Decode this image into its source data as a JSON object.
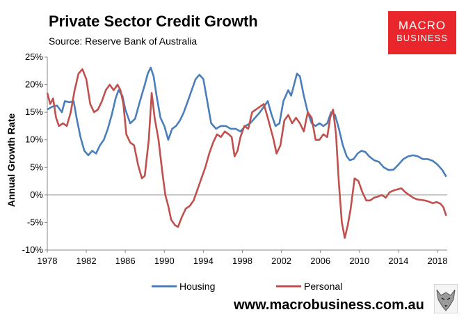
{
  "header": {
    "title": "Private Sector Credit Growth",
    "subtitle": "Source: Reserve Bank of Australia"
  },
  "logo": {
    "line1": "MACRO",
    "line2": "BUSINESS",
    "color": "#e8262b"
  },
  "footer": {
    "url": "www.macrobusiness.com.au",
    "mascot_icon": "wolf-icon"
  },
  "chart_data": {
    "type": "line",
    "title": "Private Sector Credit Growth",
    "xlabel": "",
    "ylabel": "Annual Growth Rate",
    "xlim": [
      1978,
      2019
    ],
    "ylim": [
      -10,
      25
    ],
    "x_ticks": [
      1978,
      1982,
      1986,
      1990,
      1994,
      1998,
      2002,
      2006,
      2010,
      2014,
      2018
    ],
    "y_ticks": [
      -10,
      -5,
      0,
      5,
      10,
      15,
      20,
      25
    ],
    "y_tick_labels": [
      "-10%",
      "-5%",
      "0%",
      "5%",
      "10%",
      "15%",
      "20%",
      "25%"
    ],
    "grid": false,
    "legend_position": "bottom",
    "series": [
      {
        "name": "Housing",
        "color": "#4a7ebb",
        "points": [
          [
            1978.0,
            15.5
          ],
          [
            1978.5,
            16.0
          ],
          [
            1979.0,
            16.2
          ],
          [
            1979.5,
            15.0
          ],
          [
            1979.8,
            17.0
          ],
          [
            1980.3,
            16.8
          ],
          [
            1980.7,
            17.0
          ],
          [
            1981.0,
            14.0
          ],
          [
            1981.4,
            10.5
          ],
          [
            1981.8,
            8.0
          ],
          [
            1982.2,
            7.2
          ],
          [
            1982.6,
            8.0
          ],
          [
            1983.0,
            7.5
          ],
          [
            1983.4,
            9.0
          ],
          [
            1983.8,
            10.0
          ],
          [
            1984.2,
            12.0
          ],
          [
            1984.6,
            14.5
          ],
          [
            1985.0,
            17.5
          ],
          [
            1985.3,
            19.0
          ],
          [
            1985.7,
            18.0
          ],
          [
            1986.0,
            15.5
          ],
          [
            1986.5,
            13.0
          ],
          [
            1987.0,
            13.8
          ],
          [
            1987.5,
            17.0
          ],
          [
            1988.0,
            20.0
          ],
          [
            1988.3,
            22.0
          ],
          [
            1988.6,
            23.1
          ],
          [
            1988.9,
            21.5
          ],
          [
            1989.2,
            18.0
          ],
          [
            1989.6,
            14.0
          ],
          [
            1990.0,
            12.5
          ],
          [
            1990.4,
            10.0
          ],
          [
            1990.8,
            12.0
          ],
          [
            1991.2,
            12.5
          ],
          [
            1991.6,
            13.5
          ],
          [
            1992.0,
            15.0
          ],
          [
            1992.4,
            17.0
          ],
          [
            1992.8,
            19.0
          ],
          [
            1993.2,
            21.0
          ],
          [
            1993.6,
            21.8
          ],
          [
            1994.0,
            21.0
          ],
          [
            1994.4,
            17.0
          ],
          [
            1994.8,
            13.0
          ],
          [
            1995.3,
            12.0
          ],
          [
            1995.8,
            12.5
          ],
          [
            1996.3,
            12.5
          ],
          [
            1996.8,
            12.0
          ],
          [
            1997.3,
            12.0
          ],
          [
            1997.8,
            11.5
          ],
          [
            1998.3,
            12.5
          ],
          [
            1998.8,
            13.0
          ],
          [
            1999.3,
            14.0
          ],
          [
            1999.8,
            15.0
          ],
          [
            2000.2,
            16.0
          ],
          [
            2000.6,
            17.0
          ],
          [
            2001.0,
            14.5
          ],
          [
            2001.4,
            12.5
          ],
          [
            2001.8,
            13.0
          ],
          [
            2002.2,
            17.0
          ],
          [
            2002.7,
            19.0
          ],
          [
            2003.0,
            18.0
          ],
          [
            2003.3,
            20.0
          ],
          [
            2003.6,
            22.0
          ],
          [
            2003.9,
            21.5
          ],
          [
            2004.3,
            18.0
          ],
          [
            2004.7,
            15.0
          ],
          [
            2005.1,
            13.0
          ],
          [
            2005.5,
            12.5
          ],
          [
            2005.9,
            13.0
          ],
          [
            2006.3,
            12.5
          ],
          [
            2006.7,
            13.0
          ],
          [
            2007.1,
            15.0
          ],
          [
            2007.5,
            14.5
          ],
          [
            2007.9,
            12.0
          ],
          [
            2008.3,
            9.0
          ],
          [
            2008.7,
            7.0
          ],
          [
            2009.0,
            6.3
          ],
          [
            2009.4,
            6.5
          ],
          [
            2009.8,
            7.5
          ],
          [
            2010.2,
            8.0
          ],
          [
            2010.6,
            7.8
          ],
          [
            2011.0,
            7.0
          ],
          [
            2011.5,
            6.3
          ],
          [
            2012.0,
            6.0
          ],
          [
            2012.5,
            5.0
          ],
          [
            2013.0,
            4.5
          ],
          [
            2013.5,
            4.6
          ],
          [
            2014.0,
            5.5
          ],
          [
            2014.5,
            6.5
          ],
          [
            2015.0,
            7.0
          ],
          [
            2015.5,
            7.2
          ],
          [
            2016.0,
            7.0
          ],
          [
            2016.5,
            6.5
          ],
          [
            2017.0,
            6.5
          ],
          [
            2017.5,
            6.2
          ],
          [
            2018.0,
            5.5
          ],
          [
            2018.5,
            4.5
          ],
          [
            2018.9,
            3.3
          ]
        ]
      },
      {
        "name": "Personal",
        "color": "#c0504d",
        "points": [
          [
            1978.0,
            18.5
          ],
          [
            1978.3,
            16.5
          ],
          [
            1978.6,
            17.5
          ],
          [
            1978.9,
            14.0
          ],
          [
            1979.2,
            12.5
          ],
          [
            1979.6,
            13.0
          ],
          [
            1980.0,
            12.5
          ],
          [
            1980.4,
            15.0
          ],
          [
            1980.8,
            19.0
          ],
          [
            1981.2,
            22.0
          ],
          [
            1981.6,
            22.8
          ],
          [
            1982.0,
            21.0
          ],
          [
            1982.4,
            16.5
          ],
          [
            1982.8,
            15.0
          ],
          [
            1983.2,
            15.5
          ],
          [
            1983.6,
            17.0
          ],
          [
            1984.0,
            19.0
          ],
          [
            1984.4,
            20.0
          ],
          [
            1984.8,
            19.0
          ],
          [
            1985.2,
            20.0
          ],
          [
            1985.5,
            19.0
          ],
          [
            1985.8,
            16.5
          ],
          [
            1986.1,
            11.0
          ],
          [
            1986.5,
            9.5
          ],
          [
            1986.9,
            9.0
          ],
          [
            1987.3,
            5.5
          ],
          [
            1987.7,
            3.0
          ],
          [
            1988.0,
            3.5
          ],
          [
            1988.4,
            10.0
          ],
          [
            1988.7,
            18.5
          ],
          [
            1989.0,
            14.0
          ],
          [
            1989.4,
            10.0
          ],
          [
            1989.8,
            4.0
          ],
          [
            1990.1,
            0.0
          ],
          [
            1990.4,
            -2.0
          ],
          [
            1990.7,
            -4.5
          ],
          [
            1991.1,
            -5.5
          ],
          [
            1991.4,
            -5.8
          ],
          [
            1991.8,
            -4.0
          ],
          [
            1992.2,
            -2.5
          ],
          [
            1992.6,
            -2.0
          ],
          [
            1993.0,
            -1.0
          ],
          [
            1993.4,
            1.0
          ],
          [
            1993.8,
            3.0
          ],
          [
            1994.2,
            5.0
          ],
          [
            1994.6,
            7.5
          ],
          [
            1995.0,
            9.5
          ],
          [
            1995.4,
            11.0
          ],
          [
            1995.8,
            10.5
          ],
          [
            1996.2,
            11.5
          ],
          [
            1996.6,
            11.0
          ],
          [
            1996.9,
            10.5
          ],
          [
            1997.2,
            7.0
          ],
          [
            1997.5,
            8.0
          ],
          [
            1997.8,
            10.5
          ],
          [
            1998.2,
            12.5
          ],
          [
            1998.6,
            12.0
          ],
          [
            1999.0,
            15.0
          ],
          [
            1999.4,
            15.5
          ],
          [
            1999.8,
            16.0
          ],
          [
            2000.2,
            16.5
          ],
          [
            2000.6,
            14.0
          ],
          [
            2000.9,
            12.0
          ],
          [
            2001.2,
            10.0
          ],
          [
            2001.5,
            7.5
          ],
          [
            2001.9,
            9.0
          ],
          [
            2002.3,
            13.5
          ],
          [
            2002.7,
            14.5
          ],
          [
            2003.1,
            13.0
          ],
          [
            2003.5,
            14.0
          ],
          [
            2003.9,
            13.0
          ],
          [
            2004.3,
            11.5
          ],
          [
            2004.7,
            15.0
          ],
          [
            2005.1,
            14.0
          ],
          [
            2005.5,
            10.0
          ],
          [
            2005.9,
            10.0
          ],
          [
            2006.3,
            11.0
          ],
          [
            2006.7,
            10.5
          ],
          [
            2007.0,
            14.0
          ],
          [
            2007.3,
            15.5
          ],
          [
            2007.6,
            11.0
          ],
          [
            2007.9,
            2.0
          ],
          [
            2008.2,
            -5.0
          ],
          [
            2008.5,
            -7.8
          ],
          [
            2008.8,
            -5.5
          ],
          [
            2009.1,
            -2.5
          ],
          [
            2009.5,
            3.0
          ],
          [
            2009.9,
            2.5
          ],
          [
            2010.3,
            0.5
          ],
          [
            2010.7,
            -1.0
          ],
          [
            2011.1,
            -1.0
          ],
          [
            2011.5,
            -0.5
          ],
          [
            2011.9,
            -0.3
          ],
          [
            2012.3,
            0.0
          ],
          [
            2012.7,
            -0.5
          ],
          [
            2013.1,
            0.5
          ],
          [
            2013.5,
            0.8
          ],
          [
            2013.9,
            1.0
          ],
          [
            2014.3,
            1.2
          ],
          [
            2014.7,
            0.5
          ],
          [
            2015.1,
            0.0
          ],
          [
            2015.5,
            -0.5
          ],
          [
            2015.9,
            -0.8
          ],
          [
            2016.3,
            -0.9
          ],
          [
            2016.7,
            -1.0
          ],
          [
            2017.1,
            -1.2
          ],
          [
            2017.5,
            -1.5
          ],
          [
            2017.9,
            -1.3
          ],
          [
            2018.3,
            -1.6
          ],
          [
            2018.6,
            -2.2
          ],
          [
            2018.9,
            -3.8
          ]
        ]
      }
    ]
  }
}
